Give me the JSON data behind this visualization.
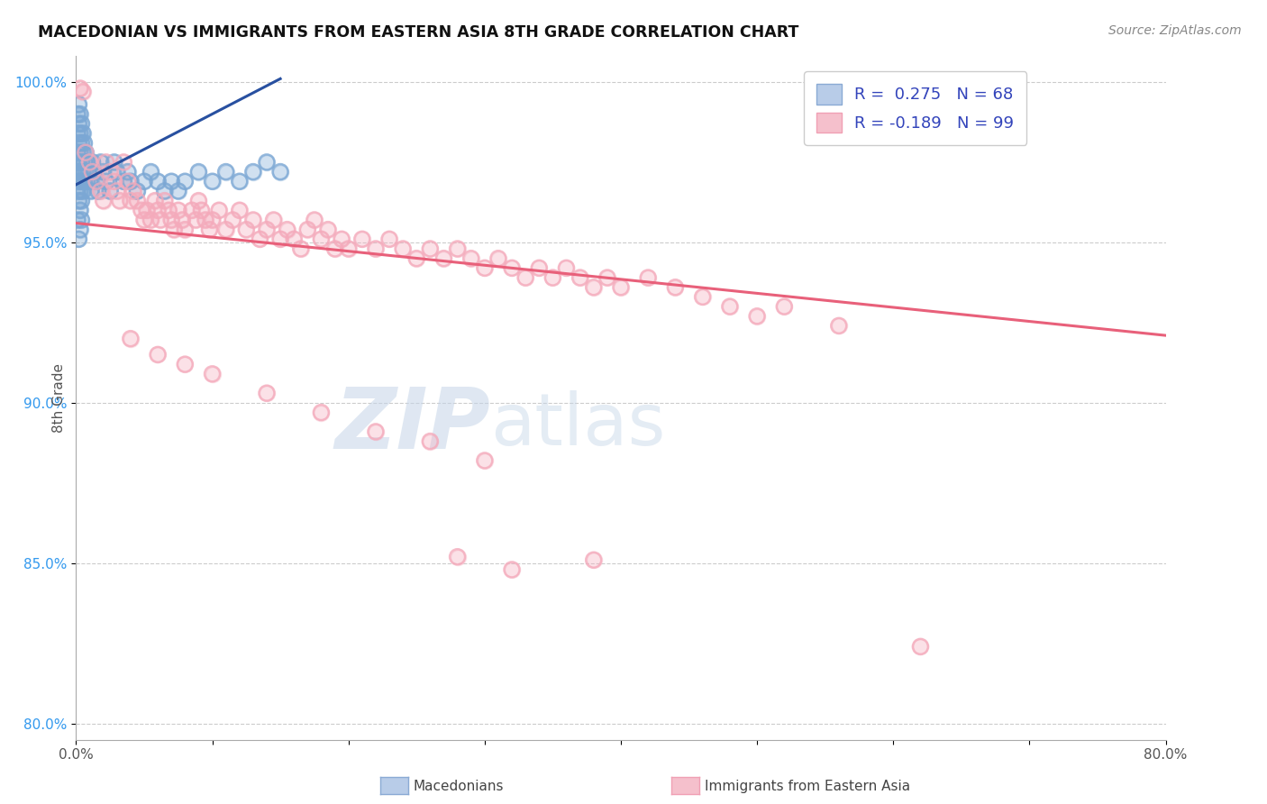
{
  "title": "MACEDONIAN VS IMMIGRANTS FROM EASTERN ASIA 8TH GRADE CORRELATION CHART",
  "source_text": "Source: ZipAtlas.com",
  "ylabel": "8th Grade",
  "xlim": [
    0.0,
    0.8
  ],
  "ylim": [
    0.795,
    1.008
  ],
  "yticks": [
    0.8,
    0.85,
    0.9,
    0.95,
    1.0
  ],
  "yticklabels": [
    "80.0%",
    "85.0%",
    "90.0%",
    "95.0%",
    "100.0%"
  ],
  "blue_color": "#7BA7D4",
  "pink_color": "#F4AABB",
  "blue_line_color": "#2850A0",
  "pink_line_color": "#E8607A",
  "R_blue": 0.275,
  "N_blue": 68,
  "R_pink": -0.189,
  "N_pink": 99,
  "watermark_ZIP": "ZIP",
  "watermark_atlas": "atlas",
  "background_color": "#ffffff",
  "grid_color": "#CCCCCC",
  "blue_line_x": [
    0.0,
    0.15
  ],
  "blue_line_y": [
    0.968,
    1.001
  ],
  "pink_line_x": [
    0.0,
    0.8
  ],
  "pink_line_y": [
    0.956,
    0.921
  ],
  "blue_scatter": [
    [
      0.001,
      0.99
    ],
    [
      0.001,
      0.984
    ],
    [
      0.001,
      0.978
    ],
    [
      0.001,
      0.972
    ],
    [
      0.001,
      0.966
    ],
    [
      0.002,
      0.993
    ],
    [
      0.002,
      0.987
    ],
    [
      0.002,
      0.981
    ],
    [
      0.002,
      0.975
    ],
    [
      0.002,
      0.969
    ],
    [
      0.002,
      0.963
    ],
    [
      0.003,
      0.99
    ],
    [
      0.003,
      0.984
    ],
    [
      0.003,
      0.978
    ],
    [
      0.003,
      0.972
    ],
    [
      0.003,
      0.966
    ],
    [
      0.003,
      0.96
    ],
    [
      0.004,
      0.987
    ],
    [
      0.004,
      0.981
    ],
    [
      0.004,
      0.975
    ],
    [
      0.004,
      0.969
    ],
    [
      0.004,
      0.963
    ],
    [
      0.005,
      0.984
    ],
    [
      0.005,
      0.978
    ],
    [
      0.005,
      0.972
    ],
    [
      0.005,
      0.966
    ],
    [
      0.006,
      0.981
    ],
    [
      0.006,
      0.975
    ],
    [
      0.006,
      0.969
    ],
    [
      0.007,
      0.978
    ],
    [
      0.007,
      0.972
    ],
    [
      0.008,
      0.975
    ],
    [
      0.008,
      0.969
    ],
    [
      0.009,
      0.972
    ],
    [
      0.01,
      0.969
    ],
    [
      0.011,
      0.966
    ],
    [
      0.012,
      0.975
    ],
    [
      0.013,
      0.972
    ],
    [
      0.015,
      0.969
    ],
    [
      0.016,
      0.966
    ],
    [
      0.018,
      0.975
    ],
    [
      0.02,
      0.972
    ],
    [
      0.022,
      0.969
    ],
    [
      0.025,
      0.966
    ],
    [
      0.028,
      0.975
    ],
    [
      0.03,
      0.972
    ],
    [
      0.035,
      0.969
    ],
    [
      0.038,
      0.972
    ],
    [
      0.04,
      0.969
    ],
    [
      0.045,
      0.966
    ],
    [
      0.05,
      0.969
    ],
    [
      0.055,
      0.972
    ],
    [
      0.06,
      0.969
    ],
    [
      0.065,
      0.966
    ],
    [
      0.07,
      0.969
    ],
    [
      0.075,
      0.966
    ],
    [
      0.08,
      0.969
    ],
    [
      0.09,
      0.972
    ],
    [
      0.1,
      0.969
    ],
    [
      0.11,
      0.972
    ],
    [
      0.12,
      0.969
    ],
    [
      0.13,
      0.972
    ],
    [
      0.14,
      0.975
    ],
    [
      0.15,
      0.972
    ],
    [
      0.001,
      0.957
    ],
    [
      0.002,
      0.951
    ],
    [
      0.003,
      0.954
    ],
    [
      0.004,
      0.957
    ]
  ],
  "pink_scatter": [
    [
      0.003,
      0.998
    ],
    [
      0.005,
      0.997
    ],
    [
      0.007,
      0.978
    ],
    [
      0.01,
      0.975
    ],
    [
      0.012,
      0.972
    ],
    [
      0.015,
      0.969
    ],
    [
      0.018,
      0.966
    ],
    [
      0.02,
      0.963
    ],
    [
      0.022,
      0.975
    ],
    [
      0.025,
      0.972
    ],
    [
      0.028,
      0.969
    ],
    [
      0.03,
      0.966
    ],
    [
      0.032,
      0.963
    ],
    [
      0.035,
      0.975
    ],
    [
      0.038,
      0.969
    ],
    [
      0.04,
      0.963
    ],
    [
      0.042,
      0.966
    ],
    [
      0.045,
      0.963
    ],
    [
      0.048,
      0.96
    ],
    [
      0.05,
      0.957
    ],
    [
      0.052,
      0.96
    ],
    [
      0.055,
      0.957
    ],
    [
      0.058,
      0.963
    ],
    [
      0.06,
      0.96
    ],
    [
      0.062,
      0.957
    ],
    [
      0.065,
      0.963
    ],
    [
      0.068,
      0.96
    ],
    [
      0.07,
      0.957
    ],
    [
      0.072,
      0.954
    ],
    [
      0.075,
      0.96
    ],
    [
      0.078,
      0.957
    ],
    [
      0.08,
      0.954
    ],
    [
      0.085,
      0.96
    ],
    [
      0.088,
      0.957
    ],
    [
      0.09,
      0.963
    ],
    [
      0.092,
      0.96
    ],
    [
      0.095,
      0.957
    ],
    [
      0.098,
      0.954
    ],
    [
      0.1,
      0.957
    ],
    [
      0.105,
      0.96
    ],
    [
      0.11,
      0.954
    ],
    [
      0.115,
      0.957
    ],
    [
      0.12,
      0.96
    ],
    [
      0.125,
      0.954
    ],
    [
      0.13,
      0.957
    ],
    [
      0.135,
      0.951
    ],
    [
      0.14,
      0.954
    ],
    [
      0.145,
      0.957
    ],
    [
      0.15,
      0.951
    ],
    [
      0.155,
      0.954
    ],
    [
      0.16,
      0.951
    ],
    [
      0.165,
      0.948
    ],
    [
      0.17,
      0.954
    ],
    [
      0.175,
      0.957
    ],
    [
      0.18,
      0.951
    ],
    [
      0.185,
      0.954
    ],
    [
      0.19,
      0.948
    ],
    [
      0.195,
      0.951
    ],
    [
      0.2,
      0.948
    ],
    [
      0.21,
      0.951
    ],
    [
      0.22,
      0.948
    ],
    [
      0.23,
      0.951
    ],
    [
      0.24,
      0.948
    ],
    [
      0.25,
      0.945
    ],
    [
      0.26,
      0.948
    ],
    [
      0.27,
      0.945
    ],
    [
      0.28,
      0.948
    ],
    [
      0.29,
      0.945
    ],
    [
      0.3,
      0.942
    ],
    [
      0.31,
      0.945
    ],
    [
      0.32,
      0.942
    ],
    [
      0.33,
      0.939
    ],
    [
      0.34,
      0.942
    ],
    [
      0.35,
      0.939
    ],
    [
      0.36,
      0.942
    ],
    [
      0.37,
      0.939
    ],
    [
      0.38,
      0.936
    ],
    [
      0.39,
      0.939
    ],
    [
      0.4,
      0.936
    ],
    [
      0.42,
      0.939
    ],
    [
      0.44,
      0.936
    ],
    [
      0.46,
      0.933
    ],
    [
      0.48,
      0.93
    ],
    [
      0.5,
      0.927
    ],
    [
      0.52,
      0.93
    ],
    [
      0.04,
      0.92
    ],
    [
      0.06,
      0.915
    ],
    [
      0.08,
      0.912
    ],
    [
      0.1,
      0.909
    ],
    [
      0.14,
      0.903
    ],
    [
      0.18,
      0.897
    ],
    [
      0.22,
      0.891
    ],
    [
      0.26,
      0.888
    ],
    [
      0.3,
      0.882
    ],
    [
      0.28,
      0.852
    ],
    [
      0.32,
      0.848
    ],
    [
      0.38,
      0.851
    ],
    [
      0.56,
      0.924
    ],
    [
      0.62,
      0.824
    ]
  ]
}
